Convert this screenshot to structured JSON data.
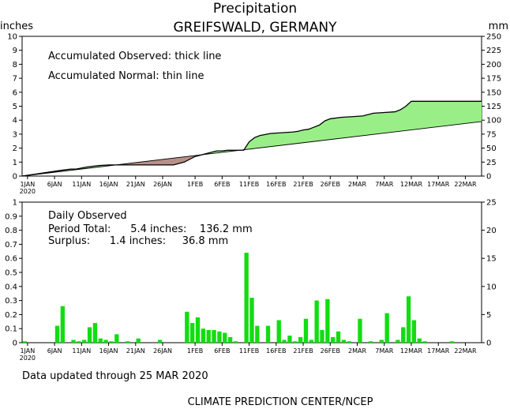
{
  "header": {
    "title": "Precipitation",
    "subtitle": "GREIFSWALD, GERMANY",
    "left_unit": "inches",
    "right_unit": "mm"
  },
  "footer": {
    "updated": "Data updated through 25 MAR 2020",
    "credit": "CLIMATE PREDICTION CENTER/NCEP"
  },
  "colors": {
    "surplus": "#99ee88",
    "deficit": "#b89088",
    "bars": "#11dd11"
  },
  "x_tick_labels": [
    {
      "day": 1,
      "label": "1JAN",
      "sub": "2020"
    },
    {
      "day": 6,
      "label": "6JAN"
    },
    {
      "day": 11,
      "label": "11JAN"
    },
    {
      "day": 16,
      "label": "16JAN"
    },
    {
      "day": 21,
      "label": "21JAN"
    },
    {
      "day": 26,
      "label": "26JAN"
    },
    {
      "day": 32,
      "label": "1FEB"
    },
    {
      "day": 37,
      "label": "6FEB"
    },
    {
      "day": 42,
      "label": "11FEB"
    },
    {
      "day": 47,
      "label": "16FEB"
    },
    {
      "day": 52,
      "label": "21FEB"
    },
    {
      "day": 57,
      "label": "26FEB"
    },
    {
      "day": 62,
      "label": "2MAR"
    },
    {
      "day": 67,
      "label": "7MAR"
    },
    {
      "day": 72,
      "label": "12MAR"
    },
    {
      "day": 77,
      "label": "17MAR"
    },
    {
      "day": 82,
      "label": "22MAR"
    }
  ],
  "chart_data": [
    {
      "type": "area",
      "annotations": [
        "Accumulated Observed: thick line",
        "Accumulated Normal: thin line"
      ],
      "ylim": [
        0,
        10
      ],
      "y_ticks": [
        0,
        1,
        2,
        3,
        4,
        5,
        6,
        7,
        8,
        9,
        10
      ],
      "ylim_right": [
        0,
        250
      ],
      "y_ticks_right": [
        0,
        25,
        50,
        75,
        100,
        125,
        150,
        175,
        200,
        225,
        250
      ],
      "x_unit": "day of 2020 (1 = 1 JAN)",
      "normal": {
        "x": [
          0,
          85
        ],
        "y": [
          0.0,
          3.9
        ]
      },
      "observed": {
        "x": [
          0,
          7,
          9,
          10,
          12,
          14,
          16,
          19,
          22,
          25,
          28,
          30,
          32,
          33,
          35,
          36,
          37,
          38,
          39,
          40,
          41,
          42,
          43,
          44,
          46,
          48,
          50,
          51,
          52,
          53,
          54,
          55,
          56,
          57,
          59,
          61,
          63,
          65,
          67,
          69,
          70,
          71,
          72,
          85
        ],
        "y": [
          0.0,
          0.4,
          0.5,
          0.5,
          0.65,
          0.75,
          0.8,
          0.8,
          0.8,
          0.8,
          0.8,
          1.0,
          1.4,
          1.5,
          1.7,
          1.8,
          1.8,
          1.85,
          1.85,
          1.85,
          1.85,
          2.45,
          2.75,
          2.9,
          3.05,
          3.1,
          3.15,
          3.2,
          3.3,
          3.35,
          3.5,
          3.65,
          3.95,
          4.1,
          4.2,
          4.25,
          4.3,
          4.5,
          4.55,
          4.6,
          4.75,
          5.0,
          5.35,
          5.35
        ]
      }
    },
    {
      "type": "bar",
      "annotations": [
        "Daily Observed",
        "Period Total:      5.4 inches:    136.2 mm",
        "Surplus:      1.4 inches:     36.8 mm"
      ],
      "ylim": [
        0,
        1
      ],
      "y_ticks": [
        0,
        0.1,
        0.2,
        0.3,
        0.4,
        0.5,
        0.6,
        0.7,
        0.8,
        0.9,
        1
      ],
      "ylim_right": [
        0,
        25
      ],
      "y_ticks_right": [
        0,
        5,
        10,
        15,
        20,
        25
      ],
      "x_unit": "day of 2020 (1 = 1 JAN)",
      "x": [
        0,
        6,
        7,
        9,
        10,
        11,
        12,
        13,
        14,
        15,
        16,
        17,
        19,
        21,
        25,
        30,
        31,
        32,
        33,
        34,
        35,
        36,
        37,
        38,
        39,
        41,
        42,
        43,
        45,
        47,
        48,
        49,
        50,
        51,
        52,
        53,
        54,
        55,
        56,
        57,
        58,
        59,
        60,
        62,
        64,
        66,
        67,
        69,
        70,
        71,
        72,
        73,
        74,
        79
      ],
      "values": [
        0.01,
        0.12,
        0.26,
        0.02,
        0.01,
        0.02,
        0.11,
        0.14,
        0.03,
        0.02,
        0.01,
        0.06,
        0.01,
        0.03,
        0.02,
        0.22,
        0.14,
        0.18,
        0.1,
        0.09,
        0.09,
        0.08,
        0.07,
        0.04,
        0.01,
        0.64,
        0.32,
        0.12,
        0.12,
        0.16,
        0.02,
        0.05,
        0.01,
        0.04,
        0.17,
        0.02,
        0.3,
        0.09,
        0.31,
        0.04,
        0.08,
        0.02,
        0.01,
        0.17,
        0.01,
        0.02,
        0.21,
        0.02,
        0.11,
        0.33,
        0.16,
        0.03,
        0.01,
        0.01
      ]
    }
  ]
}
